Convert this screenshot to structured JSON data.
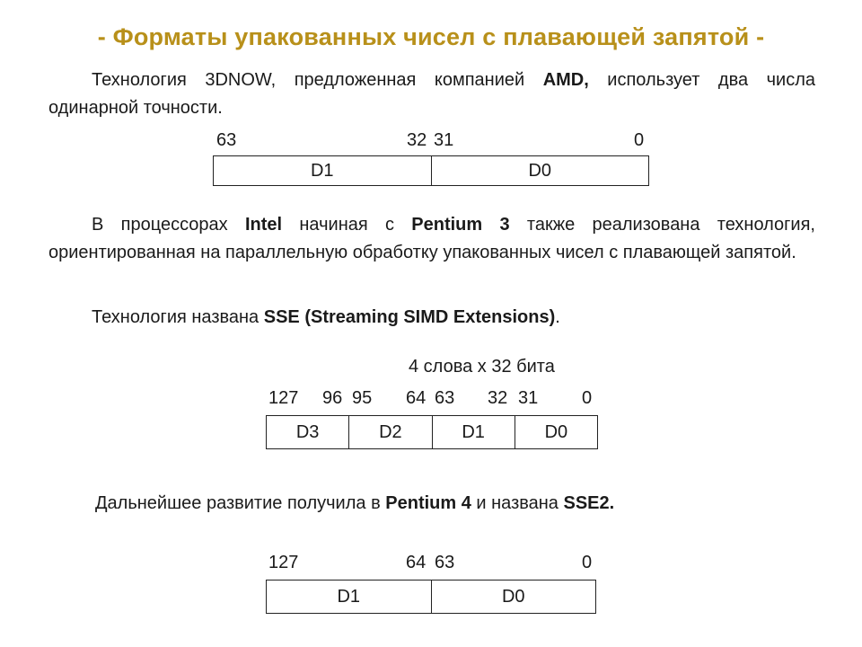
{
  "title": "- Форматы упакованных чисел с плавающей запятой -",
  "para1": {
    "t1": "Технология 3DNOW, предложенная компанией ",
    "b1": "AMD,",
    "t2": " использует два числа одинарной точности."
  },
  "reg1": {
    "bits": [
      "63",
      "32",
      "31",
      "0"
    ],
    "cells": [
      "D1",
      "D0"
    ]
  },
  "para2": {
    "t1": "В процессорах ",
    "b1": "Intel",
    "t2": " начиная с ",
    "b2": "Pentium 3",
    "t3": " также реализована технология, ориентированная на параллельную обработку упакованных чисел с плавающей запятой."
  },
  "para3": {
    "t1": "Технология названа ",
    "b1": "SSE (Streaming SIMD Extensions)",
    "t2": "."
  },
  "reg2": {
    "caption": "4 слова х 32 бита",
    "bits": [
      "127",
      "96",
      "95",
      "64",
      "63",
      "32",
      "31",
      "0"
    ],
    "cells": [
      "D3",
      "D2",
      "D1",
      "D0"
    ]
  },
  "para4": {
    "t1": "Дальнейшее развитие получила в ",
    "b1": "Pentium 4",
    "t2": " и названа ",
    "b2": "SSE2."
  },
  "reg3": {
    "bits": [
      "127",
      "64",
      "63",
      "0"
    ],
    "cells": [
      "D1",
      "D0"
    ]
  },
  "colors": {
    "title": "#b8901a",
    "text": "#1a1a1a",
    "border": "#222222"
  }
}
